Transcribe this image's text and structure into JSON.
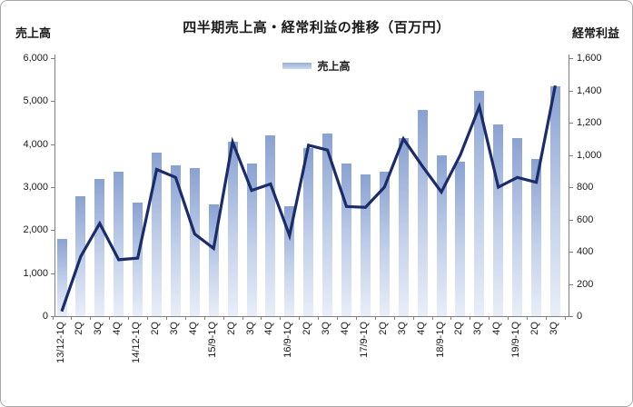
{
  "title": "四半期売上高・経常利益の推移（百万円）",
  "left_axis": {
    "label": "売上高",
    "ticks": [
      "6,000",
      "5,000",
      "4,000",
      "3,000",
      "2,000",
      "1,000",
      "0"
    ]
  },
  "right_axis": {
    "label": "経常利益",
    "ticks": [
      "1,600",
      "1,400",
      "1,200",
      "1,000",
      "800",
      "600",
      "400",
      "200",
      "0"
    ]
  },
  "legend": {
    "label": "売上高"
  },
  "colors": {
    "bar_top": "#8aa2d2",
    "bar_bottom": "#e9eef8",
    "line": "#1b2c6a",
    "axis": "#7f7f7f",
    "text": "#1a1a1a"
  },
  "chart_data": {
    "type": "bar",
    "title": "四半期売上高・経常利益の推移（百万円）",
    "categories": [
      "13/12-1Q",
      "2Q",
      "3Q",
      "4Q",
      "14/12-1Q",
      "2Q",
      "3Q",
      "4Q",
      "15/9-1Q",
      "2Q",
      "3Q",
      "4Q",
      "16/9-1Q",
      "2Q",
      "3Q",
      "4Q",
      "17/9-1Q",
      "2Q",
      "3Q",
      "4Q",
      "18/9-1Q",
      "2Q",
      "3Q",
      "4Q",
      "19/9-1Q",
      "2Q",
      "3Q"
    ],
    "series": [
      {
        "name": "売上高",
        "type": "bar",
        "yaxis": "left",
        "values": [
          1800,
          2800,
          3200,
          3350,
          2650,
          3800,
          3500,
          3450,
          2600,
          4050,
          3550,
          4200,
          2550,
          3900,
          4250,
          3550,
          3300,
          3350,
          4150,
          4800,
          3750,
          3600,
          5250,
          4450,
          4150,
          3650,
          5350
        ]
      },
      {
        "name": "経常利益",
        "type": "line",
        "yaxis": "right",
        "values": [
          30,
          370,
          575,
          350,
          360,
          910,
          860,
          510,
          420,
          1080,
          780,
          820,
          500,
          1060,
          1030,
          680,
          675,
          800,
          1100,
          930,
          770,
          1000,
          1300,
          800,
          860,
          830,
          1430
        ]
      }
    ],
    "left_axis": {
      "title": "売上高",
      "min": 0,
      "max": 6000,
      "tick_interval": 1000
    },
    "right_axis": {
      "title": "経常利益",
      "min": 0,
      "max": 1600,
      "tick_interval": 200
    },
    "legend": {
      "entries": [
        "売上高"
      ],
      "position": "top-center"
    },
    "grid": false
  }
}
